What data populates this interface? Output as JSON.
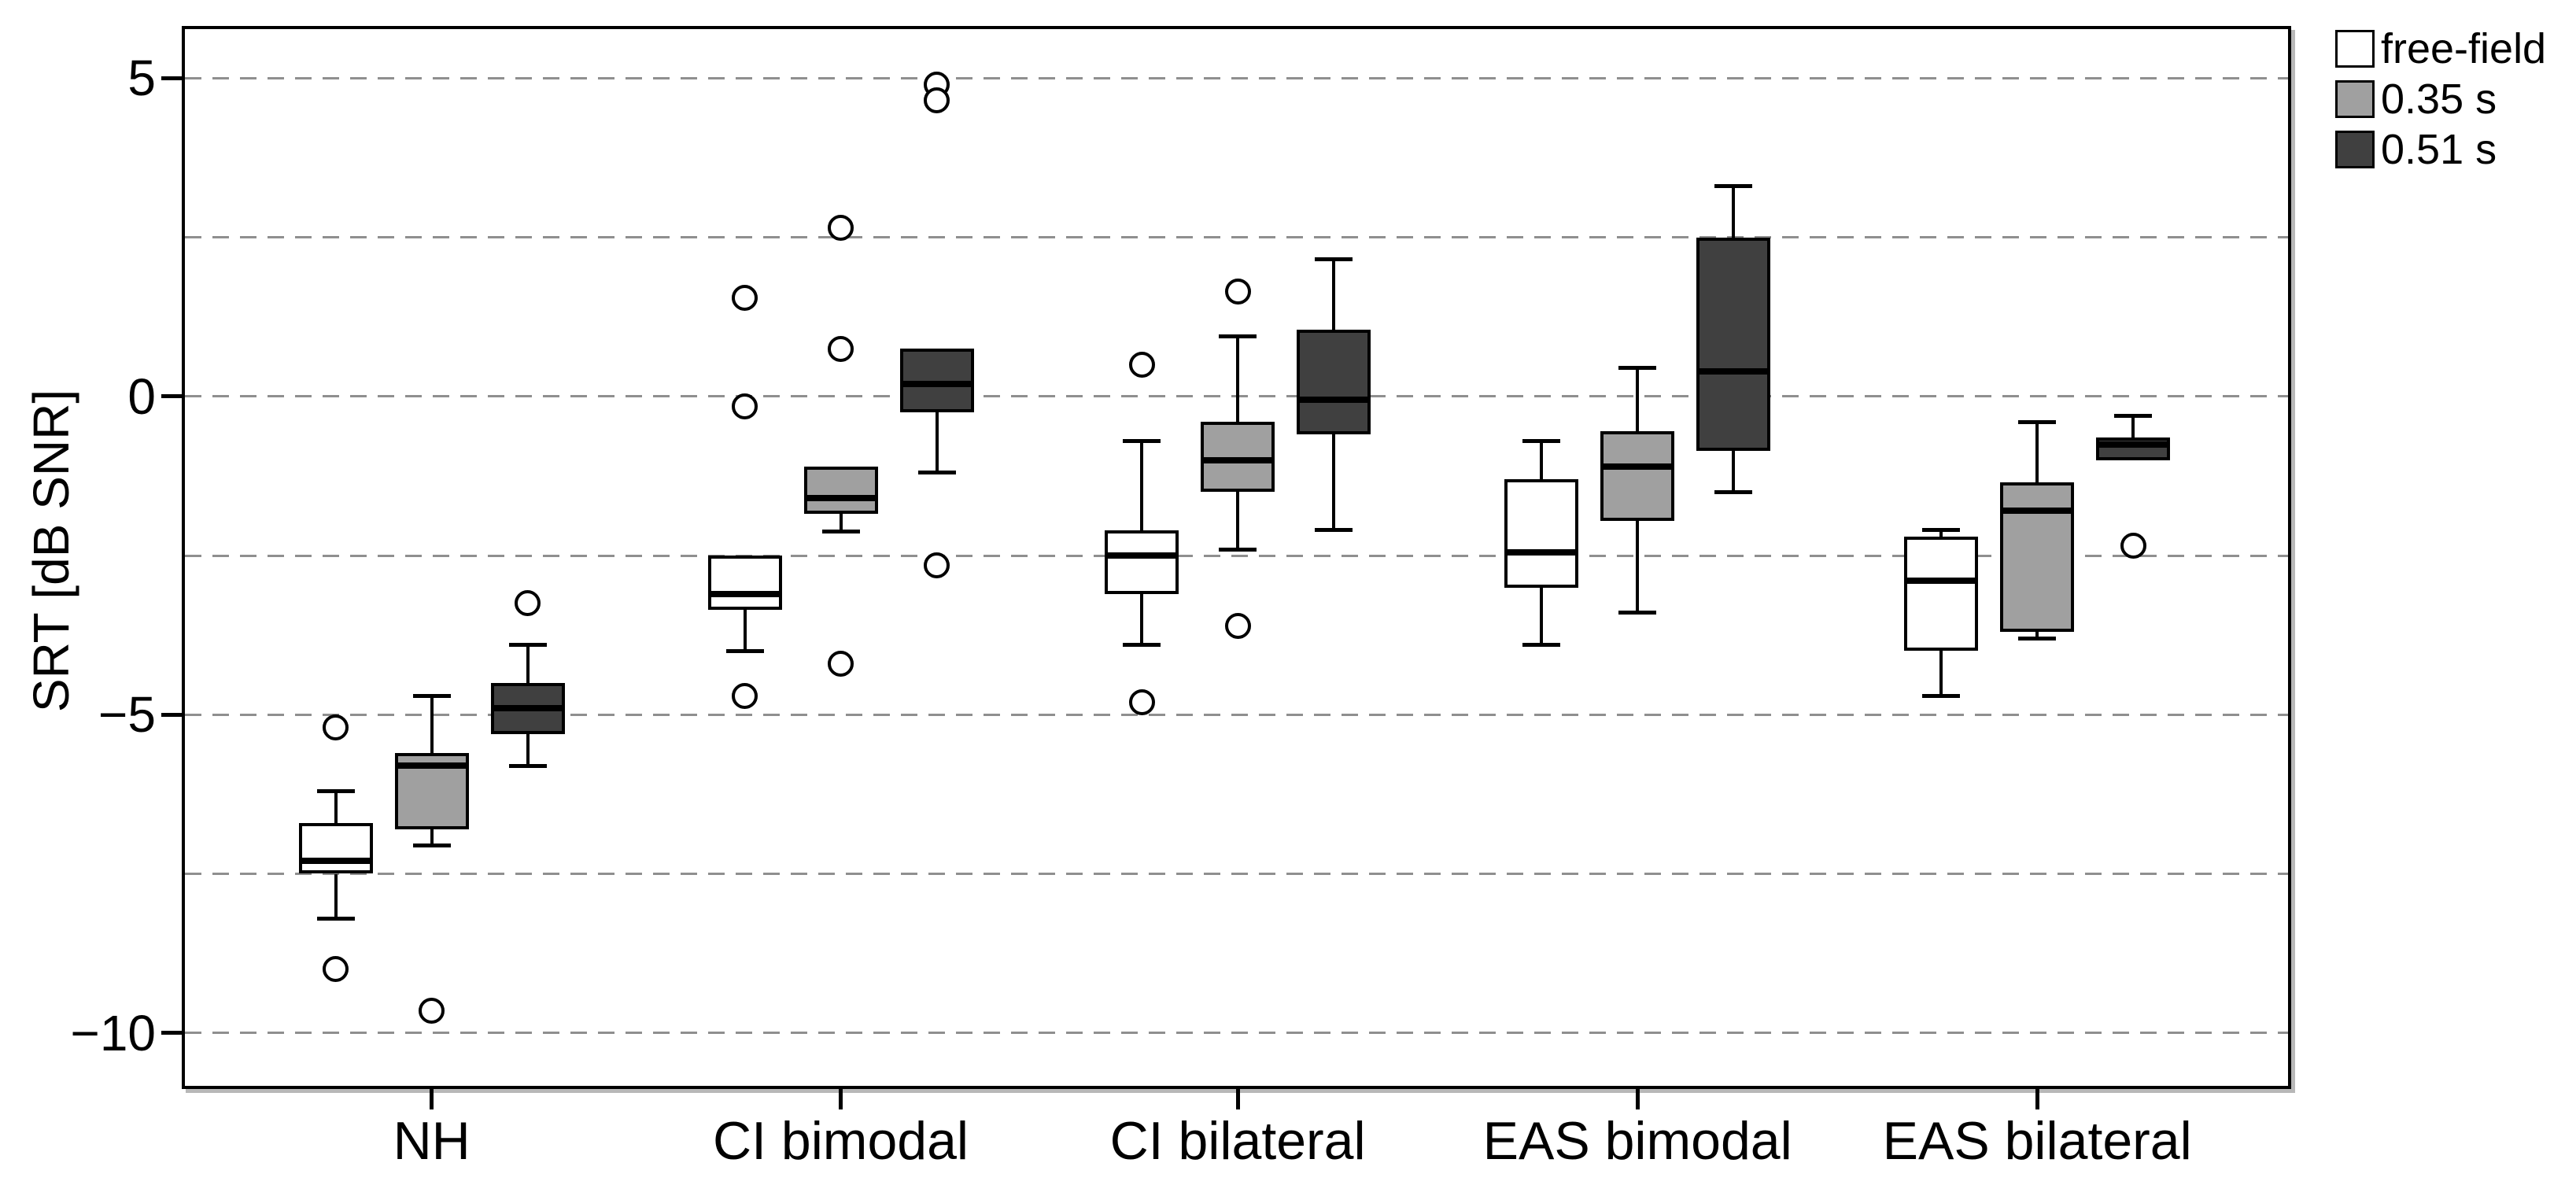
{
  "chart_data": {
    "type": "boxplot",
    "title": "",
    "xlabel": "",
    "ylabel": "SRT [dB SNR]",
    "ylim": [
      -10.88,
      5.82
    ],
    "yticks": [
      5,
      0,
      -5,
      -10
    ],
    "ytick_labels": [
      "5",
      "0",
      "−5",
      "−10"
    ],
    "gridline_values": [
      5,
      2.5,
      0,
      -2.5,
      -5,
      -7.5,
      -10
    ],
    "grid": "horizontal dashed every 2.5 dB",
    "legend_position": "outside top-right",
    "categories": [
      "NH",
      "CI bimodal",
      "CI bilateral",
      "EAS bimodal",
      "EAS bilateral"
    ],
    "series": [
      {
        "name": "free-field",
        "fill": "#ffffff",
        "boxes": [
          {
            "whislo": -8.2,
            "q1": -7.5,
            "med": -7.3,
            "q3": -6.7,
            "whishi": -6.2,
            "outliers": [
              -5.2,
              -9.0
            ]
          },
          {
            "whislo": -4.0,
            "q1": -3.35,
            "med": -3.1,
            "q3": -2.5,
            "whishi": null,
            "outliers": [
              1.55,
              -0.15,
              -4.7
            ]
          },
          {
            "whislo": -3.9,
            "q1": -3.1,
            "med": -2.5,
            "q3": -2.1,
            "whishi": -0.7,
            "outliers": [
              0.5,
              -4.8
            ]
          },
          {
            "whislo": -3.9,
            "q1": -3.0,
            "med": -2.45,
            "q3": -1.3,
            "whishi": -0.7,
            "outliers": []
          },
          {
            "whislo": -4.7,
            "q1": -4.0,
            "med": -2.9,
            "q3": -2.2,
            "whishi": -2.1,
            "outliers": []
          }
        ]
      },
      {
        "name": "0.35 s",
        "fill": "#a0a0a0",
        "boxes": [
          {
            "whislo": -7.05,
            "q1": -6.8,
            "med": -5.8,
            "q3": -5.6,
            "whishi": -4.7,
            "outliers": [
              -9.65
            ]
          },
          {
            "whislo": -2.12,
            "q1": -1.85,
            "med": -1.6,
            "q3": -1.1,
            "whishi": null,
            "outliers": [
              2.65,
              0.75,
              -4.2
            ]
          },
          {
            "whislo": -2.4,
            "q1": -1.5,
            "med": -1.0,
            "q3": -0.4,
            "whishi": 0.95,
            "outliers": [
              1.65,
              -3.6
            ]
          },
          {
            "whislo": -3.4,
            "q1": -1.95,
            "med": -1.1,
            "q3": -0.55,
            "whishi": 0.45,
            "outliers": []
          },
          {
            "whislo": -3.8,
            "q1": -3.7,
            "med": -1.8,
            "q3": -1.35,
            "whishi": -0.4,
            "outliers": []
          }
        ]
      },
      {
        "name": "0.51 s",
        "fill": "#404040",
        "boxes": [
          {
            "whislo": -5.8,
            "q1": -5.3,
            "med": -4.9,
            "q3": -4.5,
            "whishi": -3.9,
            "outliers": [
              -3.25
            ]
          },
          {
            "whislo": -1.2,
            "q1": -0.25,
            "med": 0.2,
            "q3": 0.75,
            "whishi": null,
            "outliers": [
              4.9,
              4.65,
              -2.65
            ]
          },
          {
            "whislo": -2.1,
            "q1": -0.6,
            "med": -0.05,
            "q3": 1.05,
            "whishi": 2.15,
            "outliers": []
          },
          {
            "whislo": -1.5,
            "q1": -0.85,
            "med": 0.4,
            "q3": 2.5,
            "whishi": 3.3,
            "outliers": []
          },
          {
            "whislo": null,
            "q1": -1.0,
            "med": -0.75,
            "q3": -0.65,
            "whishi": -0.3,
            "outliers": [
              -2.35
            ]
          }
        ]
      }
    ]
  }
}
